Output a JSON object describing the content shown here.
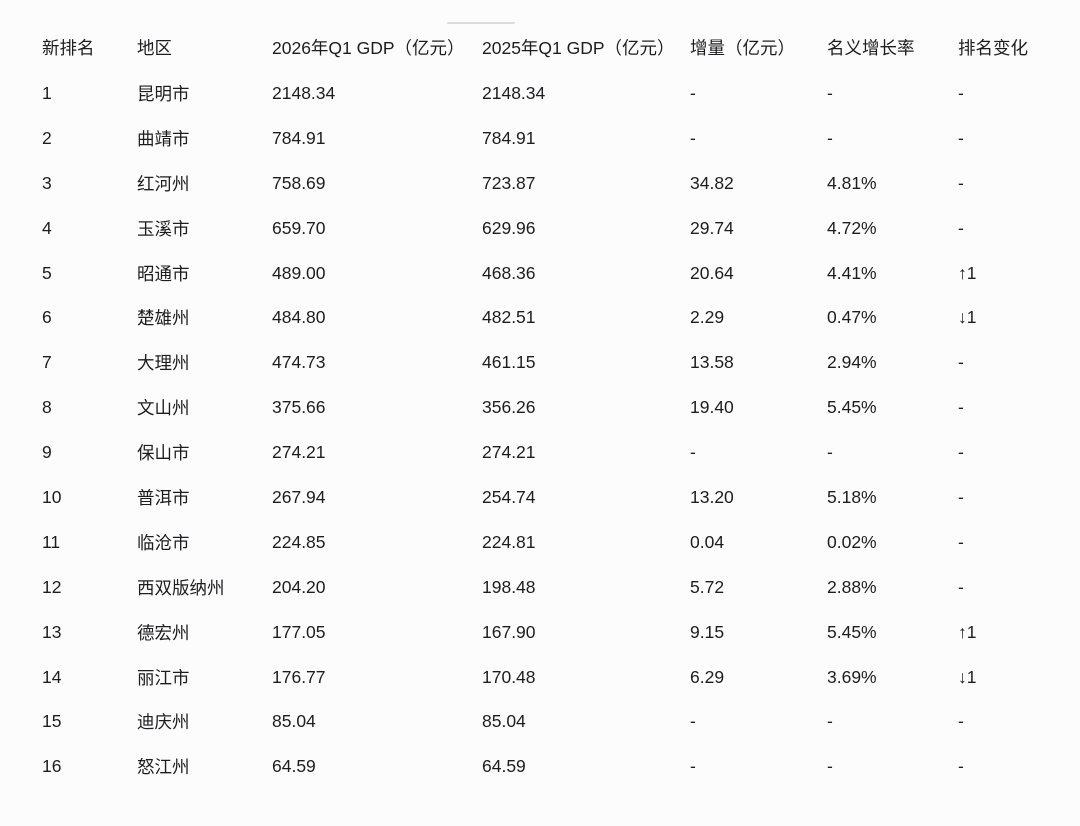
{
  "page": {
    "background_color": "#fcfcfc",
    "text_color": "#1d1d1f"
  },
  "chart_data": {
    "type": "table",
    "columns": [
      {
        "key": "new_rank",
        "label": "新排名"
      },
      {
        "key": "region",
        "label": "地区"
      },
      {
        "key": "gdp_2026_q1",
        "label": "2026年Q1 GDP（亿元）"
      },
      {
        "key": "gdp_2025_q1",
        "label": "2025年Q1 GDP（亿元）"
      },
      {
        "key": "increment",
        "label": "增量（亿元）"
      },
      {
        "key": "nominal_growth_rate",
        "label": "名义增长率"
      },
      {
        "key": "rank_change",
        "label": "排名变化"
      }
    ],
    "rows": [
      [
        "1",
        "昆明市",
        "2148.34",
        "2148.34",
        "-",
        "-",
        "-"
      ],
      [
        "2",
        "曲靖市",
        "784.91",
        "784.91",
        "-",
        "-",
        "-"
      ],
      [
        "3",
        "红河州",
        "758.69",
        "723.87",
        "34.82",
        "4.81%",
        "-"
      ],
      [
        "4",
        "玉溪市",
        "659.70",
        "629.96",
        "29.74",
        "4.72%",
        "-"
      ],
      [
        "5",
        "昭通市",
        "489.00",
        "468.36",
        "20.64",
        "4.41%",
        "↑1"
      ],
      [
        "6",
        "楚雄州",
        "484.80",
        "482.51",
        "2.29",
        "0.47%",
        "↓1"
      ],
      [
        "7",
        "大理州",
        "474.73",
        "461.15",
        "13.58",
        "2.94%",
        "-"
      ],
      [
        "8",
        "文山州",
        "375.66",
        "356.26",
        "19.40",
        "5.45%",
        "-"
      ],
      [
        "9",
        "保山市",
        "274.21",
        "274.21",
        "-",
        "-",
        "-"
      ],
      [
        "10",
        "普洱市",
        "267.94",
        "254.74",
        "13.20",
        "5.18%",
        "-"
      ],
      [
        "11",
        "临沧市",
        "224.85",
        "224.81",
        "0.04",
        "0.02%",
        "-"
      ],
      [
        "12",
        "西双版纳州",
        "204.20",
        "198.48",
        "5.72",
        "2.88%",
        "-"
      ],
      [
        "13",
        "德宏州",
        "177.05",
        "167.90",
        "9.15",
        "5.45%",
        "↑1"
      ],
      [
        "14",
        "丽江市",
        "176.77",
        "170.48",
        "6.29",
        "3.69%",
        "↓1"
      ],
      [
        "15",
        "迪庆州",
        "85.04",
        "85.04",
        "-",
        "-",
        "-"
      ],
      [
        "16",
        "怒江州",
        "64.59",
        "64.59",
        "-",
        "-",
        "-"
      ]
    ]
  }
}
